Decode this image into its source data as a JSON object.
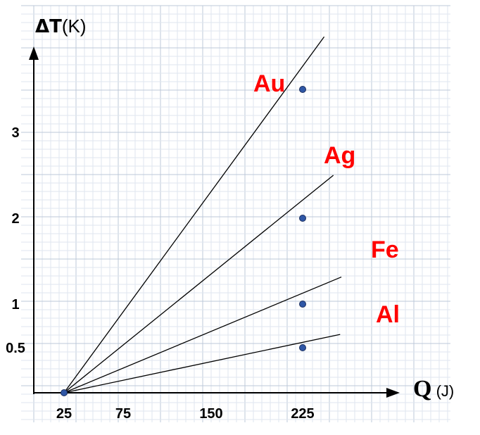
{
  "chart_data": {
    "type": "line",
    "ylabel": {
      "symbol": "ΔT",
      "unit": "(K)"
    },
    "xlabel": {
      "symbol": "Q",
      "unit": " (J)"
    },
    "x_ticks": [
      {
        "value": 25,
        "label": "25"
      },
      {
        "value": 75,
        "label": "75"
      },
      {
        "value": 150,
        "label": "150"
      },
      {
        "value": 225,
        "label": "225"
      }
    ],
    "y_ticks": [
      {
        "value": 0.5,
        "label": "0.5"
      },
      {
        "value": 1,
        "label": "1"
      },
      {
        "value": 2,
        "label": "2"
      },
      {
        "value": 3,
        "label": "3"
      }
    ],
    "origin": {
      "x": 25,
      "y": 0
    },
    "series": [
      {
        "name": "Au",
        "points": [
          [
            25,
            0
          ],
          [
            225,
            3.5
          ]
        ],
        "extend_to_x": 260
      },
      {
        "name": "Ag",
        "points": [
          [
            25,
            0
          ],
          [
            225,
            2.0
          ]
        ],
        "extend_to_x": 275
      },
      {
        "name": "Fe",
        "points": [
          [
            25,
            0
          ],
          [
            225,
            1.0
          ]
        ],
        "extend_to_x": 288
      },
      {
        "name": "Al",
        "points": [
          [
            25,
            0
          ],
          [
            225,
            0.5
          ]
        ],
        "extend_to_x": 286
      }
    ],
    "grid": true,
    "colors": {
      "labels": "#ff0000",
      "lines": "#000000",
      "markers": "#2f57a6",
      "marker_stroke": "#1c2f5e",
      "grid_major": "#bcc8d8",
      "grid_minor": "#dfe6ef",
      "background": "#ffffff"
    }
  }
}
